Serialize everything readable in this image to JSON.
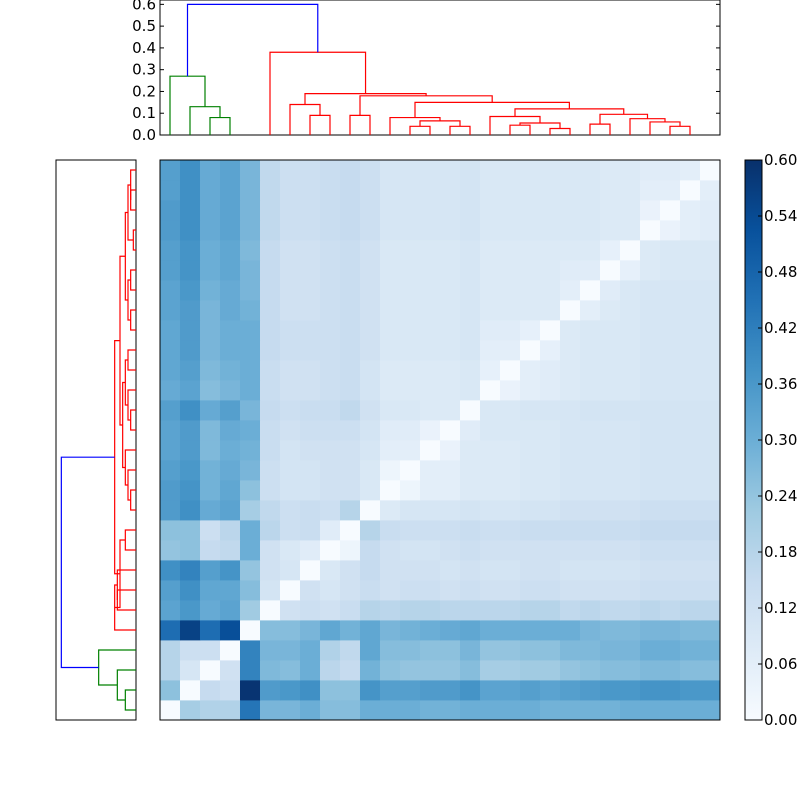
{
  "chart_data": [
    {
      "type": "heatmap",
      "title": "",
      "xlabel": "",
      "ylabel": "",
      "matrix": [
        [
          0.0,
          0.21,
          0.19,
          0.19,
          0.44,
          0.28,
          0.28,
          0.3,
          0.26,
          0.26,
          0.3,
          0.3,
          0.3,
          0.29,
          0.29,
          0.3,
          0.3,
          0.3,
          0.3,
          0.29,
          0.29,
          0.29,
          0.29,
          0.3,
          0.3,
          0.3,
          0.3,
          0.3
        ],
        [
          0.25,
          0.0,
          0.15,
          0.13,
          0.59,
          0.35,
          0.36,
          0.38,
          0.25,
          0.25,
          0.37,
          0.34,
          0.34,
          0.35,
          0.35,
          0.37,
          0.33,
          0.33,
          0.34,
          0.33,
          0.34,
          0.35,
          0.36,
          0.36,
          0.37,
          0.37,
          0.36,
          0.36
        ],
        [
          0.18,
          0.1,
          0.0,
          0.12,
          0.41,
          0.27,
          0.26,
          0.3,
          0.17,
          0.15,
          0.29,
          0.25,
          0.24,
          0.24,
          0.24,
          0.26,
          0.21,
          0.21,
          0.22,
          0.22,
          0.24,
          0.25,
          0.26,
          0.26,
          0.27,
          0.27,
          0.26,
          0.26
        ],
        [
          0.18,
          0.13,
          0.13,
          0.0,
          0.41,
          0.28,
          0.28,
          0.3,
          0.19,
          0.16,
          0.32,
          0.26,
          0.26,
          0.25,
          0.25,
          0.28,
          0.24,
          0.24,
          0.25,
          0.25,
          0.27,
          0.27,
          0.28,
          0.28,
          0.3,
          0.3,
          0.29,
          0.29
        ],
        [
          0.46,
          0.56,
          0.46,
          0.53,
          0.0,
          0.26,
          0.26,
          0.28,
          0.32,
          0.29,
          0.32,
          0.28,
          0.29,
          0.3,
          0.31,
          0.32,
          0.3,
          0.3,
          0.3,
          0.3,
          0.3,
          0.28,
          0.27,
          0.27,
          0.28,
          0.28,
          0.27,
          0.27
        ],
        [
          0.33,
          0.36,
          0.31,
          0.33,
          0.22,
          0.0,
          0.12,
          0.13,
          0.12,
          0.14,
          0.18,
          0.17,
          0.18,
          0.18,
          0.17,
          0.17,
          0.17,
          0.17,
          0.18,
          0.18,
          0.16,
          0.17,
          0.16,
          0.16,
          0.17,
          0.16,
          0.17,
          0.17
        ],
        [
          0.34,
          0.38,
          0.32,
          0.32,
          0.26,
          0.11,
          0.0,
          0.12,
          0.1,
          0.12,
          0.14,
          0.12,
          0.13,
          0.13,
          0.12,
          0.13,
          0.12,
          0.12,
          0.13,
          0.13,
          0.12,
          0.12,
          0.12,
          0.12,
          0.13,
          0.13,
          0.13,
          0.13
        ],
        [
          0.38,
          0.41,
          0.34,
          0.37,
          0.24,
          0.12,
          0.1,
          0.0,
          0.09,
          0.12,
          0.15,
          0.12,
          0.12,
          0.12,
          0.11,
          0.12,
          0.11,
          0.11,
          0.12,
          0.12,
          0.11,
          0.11,
          0.11,
          0.11,
          0.12,
          0.12,
          0.12,
          0.12
        ],
        [
          0.24,
          0.25,
          0.15,
          0.16,
          0.3,
          0.12,
          0.09,
          0.07,
          0.0,
          0.03,
          0.15,
          0.12,
          0.11,
          0.11,
          0.12,
          0.13,
          0.12,
          0.12,
          0.12,
          0.12,
          0.12,
          0.12,
          0.12,
          0.12,
          0.13,
          0.13,
          0.13,
          0.13
        ],
        [
          0.25,
          0.25,
          0.13,
          0.17,
          0.3,
          0.17,
          0.13,
          0.14,
          0.07,
          0.0,
          0.18,
          0.14,
          0.13,
          0.13,
          0.13,
          0.14,
          0.13,
          0.13,
          0.14,
          0.14,
          0.14,
          0.14,
          0.14,
          0.14,
          0.15,
          0.15,
          0.15,
          0.15
        ],
        [
          0.35,
          0.38,
          0.31,
          0.33,
          0.21,
          0.16,
          0.13,
          0.14,
          0.13,
          0.18,
          0.0,
          0.08,
          0.1,
          0.1,
          0.1,
          0.11,
          0.1,
          0.1,
          0.11,
          0.11,
          0.12,
          0.12,
          0.12,
          0.12,
          0.13,
          0.13,
          0.13,
          0.13
        ],
        [
          0.35,
          0.37,
          0.29,
          0.32,
          0.25,
          0.13,
          0.11,
          0.11,
          0.12,
          0.12,
          0.09,
          0.0,
          0.03,
          0.06,
          0.06,
          0.08,
          0.08,
          0.08,
          0.09,
          0.09,
          0.1,
          0.1,
          0.1,
          0.1,
          0.11,
          0.11,
          0.11,
          0.11
        ],
        [
          0.34,
          0.36,
          0.29,
          0.31,
          0.28,
          0.13,
          0.11,
          0.11,
          0.12,
          0.12,
          0.09,
          0.03,
          0.0,
          0.06,
          0.06,
          0.08,
          0.08,
          0.08,
          0.09,
          0.09,
          0.1,
          0.1,
          0.1,
          0.1,
          0.11,
          0.11,
          0.11,
          0.11
        ],
        [
          0.33,
          0.35,
          0.27,
          0.3,
          0.29,
          0.14,
          0.11,
          0.12,
          0.12,
          0.12,
          0.1,
          0.06,
          0.06,
          0.0,
          0.04,
          0.08,
          0.08,
          0.08,
          0.09,
          0.09,
          0.1,
          0.1,
          0.1,
          0.1,
          0.11,
          0.11,
          0.11,
          0.11
        ],
        [
          0.33,
          0.35,
          0.27,
          0.31,
          0.3,
          0.14,
          0.12,
          0.13,
          0.13,
          0.13,
          0.11,
          0.07,
          0.07,
          0.04,
          0.0,
          0.07,
          0.09,
          0.09,
          0.09,
          0.09,
          0.1,
          0.1,
          0.1,
          0.1,
          0.11,
          0.11,
          0.11,
          0.11
        ],
        [
          0.34,
          0.38,
          0.31,
          0.34,
          0.28,
          0.15,
          0.13,
          0.14,
          0.14,
          0.16,
          0.12,
          0.09,
          0.09,
          0.08,
          0.08,
          0.0,
          0.09,
          0.09,
          0.1,
          0.1,
          0.1,
          0.11,
          0.11,
          0.11,
          0.11,
          0.11,
          0.11,
          0.11
        ],
        [
          0.31,
          0.33,
          0.26,
          0.28,
          0.3,
          0.14,
          0.12,
          0.12,
          0.13,
          0.14,
          0.11,
          0.08,
          0.08,
          0.08,
          0.08,
          0.09,
          0.0,
          0.04,
          0.06,
          0.07,
          0.08,
          0.09,
          0.09,
          0.09,
          0.1,
          0.1,
          0.1,
          0.1
        ],
        [
          0.32,
          0.34,
          0.27,
          0.29,
          0.3,
          0.14,
          0.12,
          0.12,
          0.13,
          0.14,
          0.11,
          0.08,
          0.08,
          0.08,
          0.08,
          0.09,
          0.05,
          0.0,
          0.06,
          0.07,
          0.08,
          0.09,
          0.09,
          0.09,
          0.1,
          0.1,
          0.1,
          0.1
        ],
        [
          0.32,
          0.35,
          0.28,
          0.3,
          0.3,
          0.15,
          0.13,
          0.13,
          0.13,
          0.14,
          0.12,
          0.09,
          0.09,
          0.09,
          0.09,
          0.1,
          0.06,
          0.06,
          0.0,
          0.05,
          0.08,
          0.09,
          0.09,
          0.09,
          0.1,
          0.1,
          0.1,
          0.1
        ],
        [
          0.32,
          0.35,
          0.28,
          0.3,
          0.3,
          0.15,
          0.13,
          0.13,
          0.13,
          0.14,
          0.12,
          0.09,
          0.09,
          0.09,
          0.09,
          0.1,
          0.07,
          0.07,
          0.05,
          0.0,
          0.08,
          0.09,
          0.09,
          0.09,
          0.1,
          0.1,
          0.1,
          0.1
        ],
        [
          0.33,
          0.35,
          0.28,
          0.31,
          0.29,
          0.15,
          0.12,
          0.12,
          0.13,
          0.14,
          0.12,
          0.09,
          0.09,
          0.09,
          0.09,
          0.1,
          0.08,
          0.08,
          0.08,
          0.08,
          0.0,
          0.06,
          0.08,
          0.09,
          0.1,
          0.1,
          0.1,
          0.1
        ],
        [
          0.33,
          0.36,
          0.29,
          0.31,
          0.28,
          0.15,
          0.12,
          0.12,
          0.13,
          0.14,
          0.12,
          0.09,
          0.09,
          0.09,
          0.09,
          0.1,
          0.08,
          0.08,
          0.08,
          0.08,
          0.06,
          0.0,
          0.07,
          0.09,
          0.1,
          0.1,
          0.1,
          0.1
        ],
        [
          0.34,
          0.37,
          0.3,
          0.32,
          0.28,
          0.15,
          0.12,
          0.12,
          0.13,
          0.14,
          0.12,
          0.09,
          0.09,
          0.09,
          0.09,
          0.1,
          0.08,
          0.08,
          0.08,
          0.08,
          0.07,
          0.07,
          0.0,
          0.05,
          0.08,
          0.09,
          0.09,
          0.09
        ],
        [
          0.34,
          0.37,
          0.3,
          0.32,
          0.27,
          0.15,
          0.12,
          0.12,
          0.13,
          0.14,
          0.12,
          0.09,
          0.09,
          0.09,
          0.09,
          0.1,
          0.08,
          0.08,
          0.08,
          0.08,
          0.08,
          0.08,
          0.05,
          0.0,
          0.08,
          0.09,
          0.09,
          0.09
        ],
        [
          0.35,
          0.38,
          0.31,
          0.33,
          0.28,
          0.16,
          0.13,
          0.13,
          0.14,
          0.15,
          0.13,
          0.1,
          0.1,
          0.1,
          0.1,
          0.11,
          0.09,
          0.09,
          0.09,
          0.09,
          0.09,
          0.09,
          0.08,
          0.08,
          0.0,
          0.04,
          0.06,
          0.07
        ],
        [
          0.35,
          0.38,
          0.31,
          0.33,
          0.28,
          0.16,
          0.13,
          0.13,
          0.14,
          0.15,
          0.13,
          0.1,
          0.1,
          0.1,
          0.1,
          0.11,
          0.09,
          0.09,
          0.09,
          0.09,
          0.09,
          0.09,
          0.08,
          0.08,
          0.04,
          0.0,
          0.06,
          0.07
        ],
        [
          0.34,
          0.38,
          0.31,
          0.33,
          0.28,
          0.16,
          0.13,
          0.13,
          0.14,
          0.15,
          0.13,
          0.1,
          0.1,
          0.1,
          0.1,
          0.11,
          0.09,
          0.09,
          0.09,
          0.09,
          0.09,
          0.09,
          0.08,
          0.08,
          0.06,
          0.06,
          0.0,
          0.06
        ],
        [
          0.34,
          0.38,
          0.31,
          0.33,
          0.28,
          0.16,
          0.13,
          0.13,
          0.14,
          0.15,
          0.13,
          0.1,
          0.1,
          0.1,
          0.1,
          0.11,
          0.09,
          0.09,
          0.09,
          0.09,
          0.09,
          0.09,
          0.08,
          0.08,
          0.07,
          0.07,
          0.06,
          0.0
        ]
      ],
      "colorscale": "Blues",
      "vmin": 0.0,
      "vmax": 0.6,
      "colorbar_ticks": [
        "0.00",
        "0.06",
        "0.12",
        "0.18",
        "0.24",
        "0.30",
        "0.36",
        "0.42",
        "0.48",
        "0.54",
        "0.60"
      ],
      "row_col_order": "heatmap rows listed bottom to top, columns left to right"
    },
    {
      "type": "dendrogram",
      "orientation": "top",
      "ylim": [
        0.0,
        0.62
      ],
      "yticks": [
        "0.0",
        "0.1",
        "0.2",
        "0.3",
        "0.4",
        "0.5",
        "0.6"
      ],
      "leaves": 28,
      "links": [
        {
          "a": 2,
          "b": 3,
          "h": 0.08,
          "color": "#008000"
        },
        {
          "a": 1,
          "b": "c0",
          "h": 0.13,
          "color": "#008000"
        },
        {
          "a": 0,
          "b": "c1",
          "h": 0.27,
          "color": "#008000"
        },
        {
          "a": 7,
          "b": 8,
          "h": 0.09,
          "color": "#ff0000"
        },
        {
          "a": 6,
          "b": "c3",
          "h": 0.14,
          "color": "#ff0000"
        },
        {
          "a": 9,
          "b": 10,
          "h": 0.09,
          "color": "#ff0000"
        },
        {
          "a": 12,
          "b": 13,
          "h": 0.04,
          "color": "#ff0000"
        },
        {
          "a": 14,
          "b": 15,
          "h": 0.04,
          "color": "#ff0000"
        },
        {
          "a": "c6",
          "b": "c7",
          "h": 0.065,
          "color": "#ff0000"
        },
        {
          "a": 11,
          "b": "c8",
          "h": 0.08,
          "color": "#ff0000"
        },
        {
          "a": 17,
          "b": 18,
          "h": 0.045,
          "color": "#ff0000"
        },
        {
          "a": 19,
          "b": 20,
          "h": 0.03,
          "color": "#ff0000"
        },
        {
          "a": "c10",
          "b": "c11",
          "h": 0.055,
          "color": "#ff0000"
        },
        {
          "a": 16,
          "b": "c12",
          "h": 0.085,
          "color": "#ff0000"
        },
        {
          "a": 21,
          "b": 22,
          "h": 0.05,
          "color": "#ff0000"
        },
        {
          "a": 25,
          "b": 26,
          "h": 0.04,
          "color": "#ff0000"
        },
        {
          "a": 24,
          "b": "c15",
          "h": 0.06,
          "color": "#ff0000"
        },
        {
          "a": 23,
          "b": "c16",
          "h": 0.075,
          "color": "#ff0000"
        },
        {
          "a": "c14",
          "b": "c17",
          "h": 0.095,
          "color": "#ff0000"
        },
        {
          "a": "c13",
          "b": "c18",
          "h": 0.12,
          "color": "#ff0000"
        },
        {
          "a": "c9",
          "b": "c19",
          "h": 0.15,
          "color": "#ff0000"
        },
        {
          "a": "c5",
          "b": "c20",
          "h": 0.18,
          "color": "#ff0000"
        },
        {
          "a": "c4",
          "b": "c21",
          "h": 0.19,
          "color": "#ff0000"
        },
        {
          "a": 5,
          "b": "c22",
          "h": 0.38,
          "color": "#ff0000"
        },
        {
          "a": "c2",
          "b": "c23",
          "h": 0.6,
          "color": "#0000ff"
        }
      ]
    },
    {
      "type": "dendrogram",
      "orientation": "left",
      "leaves": 28,
      "links": [
        {
          "a": 0,
          "b": 1,
          "h": 0.04,
          "color": "#008000"
        },
        {
          "a": 2,
          "b": "c0",
          "h": 0.07,
          "color": "#008000"
        },
        {
          "a": 3,
          "b": "c1",
          "h": 0.14,
          "color": "#008000"
        },
        {
          "a": 5,
          "b": 6,
          "h": 0.07,
          "color": "#ff0000"
        },
        {
          "a": 7,
          "b": "c3",
          "h": 0.07,
          "color": "#ff0000"
        },
        {
          "a": 4,
          "b": "c4",
          "h": 0.08,
          "color": "#ff0000"
        },
        {
          "a": 8,
          "b": 9,
          "h": 0.04,
          "color": "#ff0000"
        },
        {
          "a": "c5",
          "b": "c6",
          "h": 0.06,
          "color": "#ff0000"
        },
        {
          "a": 10,
          "b": 11,
          "h": 0.02,
          "color": "#ff0000"
        },
        {
          "a": "c8",
          "b": 12,
          "h": 0.03,
          "color": "#ff0000"
        },
        {
          "a": "c9",
          "b": 13,
          "h": 0.04,
          "color": "#ff0000"
        },
        {
          "a": 14,
          "b": 15,
          "h": 0.02,
          "color": "#ff0000"
        },
        {
          "a": "c11",
          "b": 16,
          "h": 0.03,
          "color": "#ff0000"
        },
        {
          "a": 17,
          "b": 18,
          "h": 0.03,
          "color": "#ff0000"
        },
        {
          "a": "c12",
          "b": "c13",
          "h": 0.04,
          "color": "#ff0000"
        },
        {
          "a": "c10",
          "b": "c14",
          "h": 0.05,
          "color": "#ff0000"
        },
        {
          "a": 19,
          "b": 20,
          "h": 0.02,
          "color": "#ff0000"
        },
        {
          "a": 21,
          "b": 22,
          "h": 0.02,
          "color": "#ff0000"
        },
        {
          "a": "c16",
          "b": "c17",
          "h": 0.03,
          "color": "#ff0000"
        },
        {
          "a": 23,
          "b": 24,
          "h": 0.01,
          "color": "#ff0000"
        },
        {
          "a": 25,
          "b": 26,
          "h": 0.02,
          "color": "#ff0000"
        },
        {
          "a": "c20",
          "b": 27,
          "h": 0.02,
          "color": "#ff0000"
        },
        {
          "a": "c19",
          "b": "c21",
          "h": 0.03,
          "color": "#ff0000"
        },
        {
          "a": "c18",
          "b": "c22",
          "h": 0.04,
          "color": "#ff0000"
        },
        {
          "a": "c15",
          "b": "c23",
          "h": 0.06,
          "color": "#ff0000"
        },
        {
          "a": "c7",
          "b": "c24",
          "h": 0.08,
          "color": "#ff0000"
        },
        {
          "a": "c2",
          "b": "c25",
          "h": 0.28,
          "color": "#0000ff"
        }
      ]
    }
  ]
}
